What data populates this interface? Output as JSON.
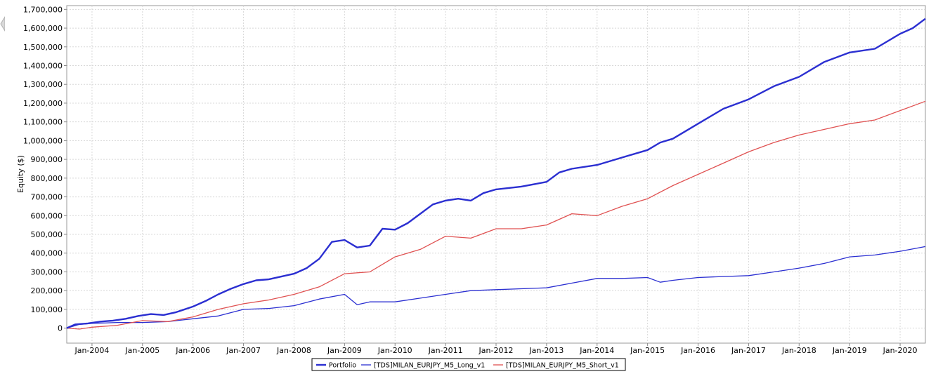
{
  "chart_data": {
    "type": "line",
    "title": "",
    "xlabel": "",
    "ylabel": "Equity ($)",
    "xlim": [
      "2003-07",
      "2020-07"
    ],
    "ylim": [
      -80000,
      1720000
    ],
    "grid": true,
    "legend_position": "bottom-center",
    "y_ticks": [
      {
        "value": 0,
        "label": "0"
      },
      {
        "value": 100000,
        "label": "100,000"
      },
      {
        "value": 200000,
        "label": "200,000"
      },
      {
        "value": 300000,
        "label": "300,000"
      },
      {
        "value": 400000,
        "label": "400,000"
      },
      {
        "value": 500000,
        "label": "500,000"
      },
      {
        "value": 600000,
        "label": "600,000"
      },
      {
        "value": 700000,
        "label": "700,000"
      },
      {
        "value": 800000,
        "label": "800,000"
      },
      {
        "value": 900000,
        "label": "900,000"
      },
      {
        "value": 1000000,
        "label": "1,000,000"
      },
      {
        "value": 1100000,
        "label": "1,100,000"
      },
      {
        "value": 1200000,
        "label": "1,200,000"
      },
      {
        "value": 1300000,
        "label": "1,300,000"
      },
      {
        "value": 1400000,
        "label": "1,400,000"
      },
      {
        "value": 1500000,
        "label": "1,500,000"
      },
      {
        "value": 1600000,
        "label": "1,600,000"
      },
      {
        "value": 1700000,
        "label": "1,700,000"
      }
    ],
    "x_ticks": [
      {
        "value": "2004-01",
        "label": "Jan-2004"
      },
      {
        "value": "2005-01",
        "label": "Jan-2005"
      },
      {
        "value": "2006-01",
        "label": "Jan-2006"
      },
      {
        "value": "2007-01",
        "label": "Jan-2007"
      },
      {
        "value": "2008-01",
        "label": "Jan-2008"
      },
      {
        "value": "2009-01",
        "label": "Jan-2009"
      },
      {
        "value": "2010-01",
        "label": "Jan-2010"
      },
      {
        "value": "2011-01",
        "label": "Jan-2011"
      },
      {
        "value": "2012-01",
        "label": "Jan-2012"
      },
      {
        "value": "2013-01",
        "label": "Jan-2013"
      },
      {
        "value": "2014-01",
        "label": "Jan-2014"
      },
      {
        "value": "2015-01",
        "label": "Jan-2015"
      },
      {
        "value": "2016-01",
        "label": "Jan-2016"
      },
      {
        "value": "2017-01",
        "label": "Jan-2017"
      },
      {
        "value": "2018-01",
        "label": "Jan-2018"
      },
      {
        "value": "2019-01",
        "label": "Jan-2019"
      },
      {
        "value": "2020-01",
        "label": "Jan-2020"
      }
    ],
    "series": [
      {
        "name": "Portfolio",
        "color": "#2b2fd1",
        "emphasis": "thick",
        "points": [
          [
            "2003-07",
            0
          ],
          [
            "2003-09",
            20000
          ],
          [
            "2003-12",
            25000
          ],
          [
            "2004-03",
            35000
          ],
          [
            "2004-06",
            40000
          ],
          [
            "2004-09",
            50000
          ],
          [
            "2004-12",
            65000
          ],
          [
            "2005-03",
            75000
          ],
          [
            "2005-06",
            70000
          ],
          [
            "2005-09",
            85000
          ],
          [
            "2006-01",
            115000
          ],
          [
            "2006-04",
            145000
          ],
          [
            "2006-07",
            180000
          ],
          [
            "2006-10",
            210000
          ],
          [
            "2007-01",
            235000
          ],
          [
            "2007-04",
            255000
          ],
          [
            "2007-07",
            260000
          ],
          [
            "2007-10",
            275000
          ],
          [
            "2008-01",
            290000
          ],
          [
            "2008-04",
            320000
          ],
          [
            "2008-07",
            370000
          ],
          [
            "2008-10",
            460000
          ],
          [
            "2009-01",
            470000
          ],
          [
            "2009-04",
            430000
          ],
          [
            "2009-07",
            440000
          ],
          [
            "2009-10",
            530000
          ],
          [
            "2010-01",
            525000
          ],
          [
            "2010-04",
            560000
          ],
          [
            "2010-07",
            610000
          ],
          [
            "2010-10",
            660000
          ],
          [
            "2011-01",
            680000
          ],
          [
            "2011-04",
            690000
          ],
          [
            "2011-07",
            680000
          ],
          [
            "2011-10",
            720000
          ],
          [
            "2012-01",
            740000
          ],
          [
            "2012-07",
            755000
          ],
          [
            "2013-01",
            780000
          ],
          [
            "2013-04",
            830000
          ],
          [
            "2013-07",
            850000
          ],
          [
            "2014-01",
            870000
          ],
          [
            "2014-07",
            910000
          ],
          [
            "2015-01",
            950000
          ],
          [
            "2015-04",
            990000
          ],
          [
            "2015-07",
            1010000
          ],
          [
            "2016-01",
            1090000
          ],
          [
            "2016-07",
            1170000
          ],
          [
            "2017-01",
            1220000
          ],
          [
            "2017-07",
            1290000
          ],
          [
            "2018-01",
            1340000
          ],
          [
            "2018-07",
            1420000
          ],
          [
            "2019-01",
            1470000
          ],
          [
            "2019-07",
            1490000
          ],
          [
            "2020-01",
            1570000
          ],
          [
            "2020-04",
            1600000
          ],
          [
            "2020-07",
            1650000
          ]
        ]
      },
      {
        "name": "[TDS]MILAN_EURJPY_M5_Long_v1",
        "color": "#2b2fd1",
        "emphasis": "normal",
        "points": [
          [
            "2003-07",
            0
          ],
          [
            "2003-10",
            20000
          ],
          [
            "2004-01",
            25000
          ],
          [
            "2004-07",
            30000
          ],
          [
            "2005-01",
            30000
          ],
          [
            "2005-07",
            35000
          ],
          [
            "2006-01",
            50000
          ],
          [
            "2006-07",
            65000
          ],
          [
            "2007-01",
            100000
          ],
          [
            "2007-07",
            105000
          ],
          [
            "2008-01",
            120000
          ],
          [
            "2008-07",
            155000
          ],
          [
            "2009-01",
            180000
          ],
          [
            "2009-04",
            125000
          ],
          [
            "2009-07",
            140000
          ],
          [
            "2010-01",
            140000
          ],
          [
            "2010-07",
            160000
          ],
          [
            "2011-01",
            180000
          ],
          [
            "2011-07",
            200000
          ],
          [
            "2012-01",
            205000
          ],
          [
            "2012-07",
            210000
          ],
          [
            "2013-01",
            215000
          ],
          [
            "2013-07",
            240000
          ],
          [
            "2014-01",
            265000
          ],
          [
            "2014-07",
            265000
          ],
          [
            "2015-01",
            270000
          ],
          [
            "2015-04",
            245000
          ],
          [
            "2015-07",
            255000
          ],
          [
            "2016-01",
            270000
          ],
          [
            "2016-07",
            275000
          ],
          [
            "2017-01",
            280000
          ],
          [
            "2017-07",
            300000
          ],
          [
            "2018-01",
            320000
          ],
          [
            "2018-07",
            345000
          ],
          [
            "2019-01",
            380000
          ],
          [
            "2019-07",
            390000
          ],
          [
            "2020-01",
            410000
          ],
          [
            "2020-07",
            435000
          ]
        ]
      },
      {
        "name": "[TDS]MILAN_EURJPY_M5_Short_v1",
        "color": "#e05252",
        "emphasis": "normal",
        "points": [
          [
            "2003-07",
            0
          ],
          [
            "2003-10",
            -5000
          ],
          [
            "2004-01",
            5000
          ],
          [
            "2004-07",
            15000
          ],
          [
            "2005-01",
            40000
          ],
          [
            "2005-07",
            35000
          ],
          [
            "2006-01",
            60000
          ],
          [
            "2006-07",
            100000
          ],
          [
            "2007-01",
            130000
          ],
          [
            "2007-07",
            150000
          ],
          [
            "2008-01",
            180000
          ],
          [
            "2008-07",
            220000
          ],
          [
            "2009-01",
            290000
          ],
          [
            "2009-07",
            300000
          ],
          [
            "2010-01",
            380000
          ],
          [
            "2010-07",
            420000
          ],
          [
            "2011-01",
            490000
          ],
          [
            "2011-07",
            480000
          ],
          [
            "2012-01",
            530000
          ],
          [
            "2012-07",
            530000
          ],
          [
            "2013-01",
            550000
          ],
          [
            "2013-07",
            610000
          ],
          [
            "2014-01",
            600000
          ],
          [
            "2014-07",
            650000
          ],
          [
            "2015-01",
            690000
          ],
          [
            "2015-07",
            760000
          ],
          [
            "2016-01",
            820000
          ],
          [
            "2016-07",
            880000
          ],
          [
            "2017-01",
            940000
          ],
          [
            "2017-07",
            990000
          ],
          [
            "2018-01",
            1030000
          ],
          [
            "2018-07",
            1060000
          ],
          [
            "2019-01",
            1090000
          ],
          [
            "2019-07",
            1110000
          ],
          [
            "2020-01",
            1160000
          ],
          [
            "2020-07",
            1210000
          ]
        ]
      }
    ]
  }
}
